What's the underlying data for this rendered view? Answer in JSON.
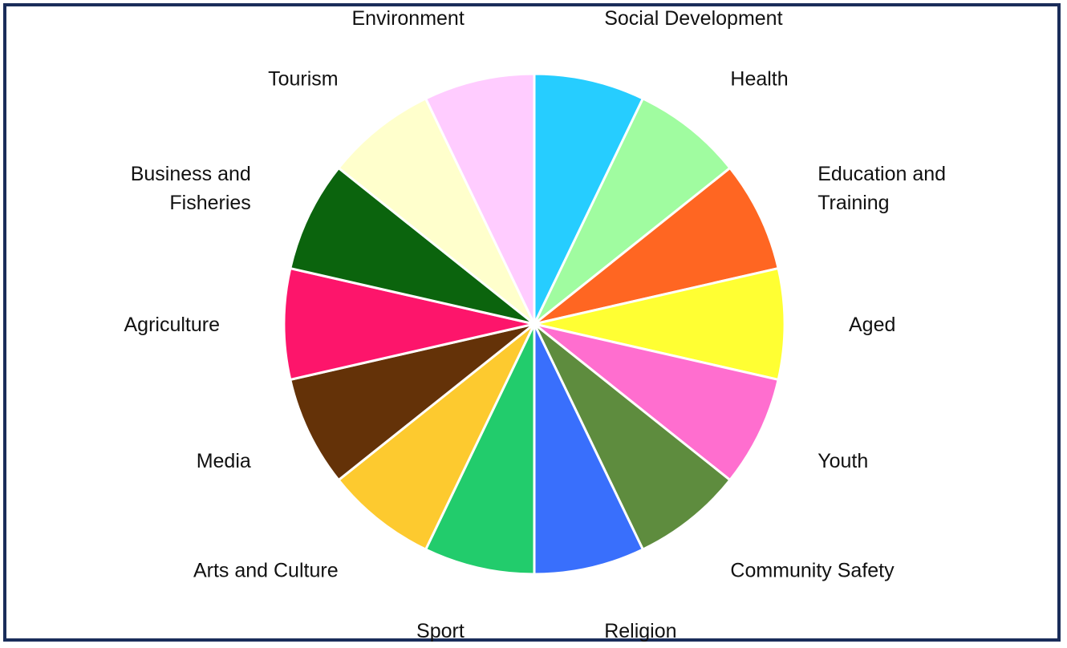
{
  "chart_data": {
    "type": "pie",
    "title": "",
    "slices": [
      {
        "label": [
          "Social Development"
        ],
        "value": 1,
        "color": "#26cdff"
      },
      {
        "label": [
          "Health"
        ],
        "value": 1,
        "color": "#a0fca0"
      },
      {
        "label": [
          "Education and",
          "Training"
        ],
        "value": 1,
        "color": "#ff6622"
      },
      {
        "label": [
          "Aged"
        ],
        "value": 1,
        "color": "#ffff33"
      },
      {
        "label": [
          "Youth"
        ],
        "value": 1,
        "color": "#ff6ecf"
      },
      {
        "label": [
          "Community Safety"
        ],
        "value": 1,
        "color": "#5e8c3e"
      },
      {
        "label": [
          "Religion"
        ],
        "value": 1,
        "color": "#396ffc"
      },
      {
        "label": [
          "Sport"
        ],
        "value": 1,
        "color": "#22cc6c"
      },
      {
        "label": [
          "Arts and Culture"
        ],
        "value": 1,
        "color": "#fdca2f"
      },
      {
        "label": [
          "Media"
        ],
        "value": 1,
        "color": "#643208"
      },
      {
        "label": [
          "Agriculture"
        ],
        "value": 1,
        "color": "#fd156b"
      },
      {
        "label": [
          "Business and",
          "Fisheries"
        ],
        "value": 1,
        "color": "#0b640d"
      },
      {
        "label": [
          "Tourism"
        ],
        "value": 1,
        "color": "#ffffcc"
      },
      {
        "label": [
          "Environment"
        ],
        "value": 1,
        "color": "#ffccff"
      }
    ],
    "start_angle_deg": 0,
    "direction": "clockwise",
    "legend": "none",
    "slice_border_color": "#ffffff",
    "frame_border_color": "#1a2d5a"
  }
}
